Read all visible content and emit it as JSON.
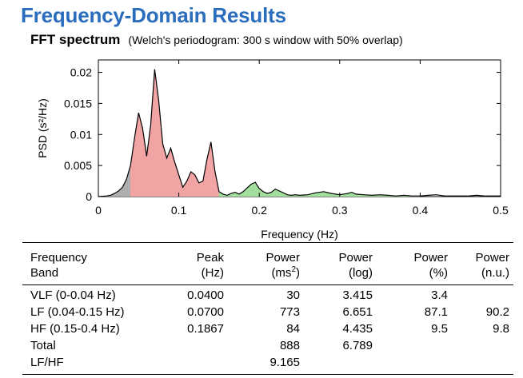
{
  "title": "Frequency-Domain Results",
  "subtitle": "FFT spectrum",
  "subtitle_note": "(Welch's periodogram: 300 s window with 50% overlap)",
  "chart_data": {
    "type": "area",
    "xlabel": "Frequency (Hz)",
    "ylabel": "PSD (s²/Hz)",
    "xlim": [
      0,
      0.5
    ],
    "ylim": [
      0,
      0.022
    ],
    "xticks": [
      "0",
      "0.1",
      "0.2",
      "0.3",
      "0.4",
      "0.5"
    ],
    "yticks": [
      "0",
      "0.005",
      "0.01",
      "0.015",
      "0.02"
    ],
    "bands": [
      {
        "name": "VLF",
        "range": [
          0,
          0.04
        ],
        "color": "#b3b3b3"
      },
      {
        "name": "LF",
        "range": [
          0.04,
          0.15
        ],
        "color": "#f4a9a9"
      },
      {
        "name": "HF",
        "range": [
          0.15,
          0.4
        ],
        "color": "#a8e2a2"
      }
    ],
    "x": [
      0,
      0.005,
      0.01,
      0.015,
      0.02,
      0.025,
      0.03,
      0.035,
      0.04,
      0.045,
      0.05,
      0.055,
      0.06,
      0.065,
      0.07,
      0.075,
      0.08,
      0.085,
      0.09,
      0.095,
      0.1,
      0.105,
      0.11,
      0.115,
      0.12,
      0.125,
      0.13,
      0.135,
      0.14,
      0.145,
      0.15,
      0.155,
      0.16,
      0.165,
      0.17,
      0.175,
      0.18,
      0.185,
      0.19,
      0.195,
      0.2,
      0.205,
      0.21,
      0.215,
      0.22,
      0.225,
      0.23,
      0.235,
      0.24,
      0.245,
      0.25,
      0.26,
      0.27,
      0.28,
      0.29,
      0.3,
      0.31,
      0.315,
      0.32,
      0.33,
      0.34,
      0.35,
      0.36,
      0.37,
      0.38,
      0.39,
      0.4,
      0.41,
      0.42,
      0.43,
      0.44,
      0.45,
      0.46,
      0.47,
      0.48,
      0.49,
      0.5
    ],
    "y": [
      0,
      5e-05,
      0.0001,
      0.0002,
      0.0005,
      0.0009,
      0.0015,
      0.0028,
      0.005,
      0.0095,
      0.0135,
      0.011,
      0.0065,
      0.0115,
      0.0205,
      0.0155,
      0.0085,
      0.0062,
      0.0078,
      0.0055,
      0.0035,
      0.0015,
      0.0025,
      0.004,
      0.0035,
      0.0022,
      0.0025,
      0.006,
      0.0088,
      0.004,
      0.0008,
      0.0004,
      0.0002,
      0.0005,
      0.0007,
      0.0004,
      0.0008,
      0.0014,
      0.002,
      0.0023,
      0.0013,
      0.0008,
      0.0005,
      0.0007,
      0.0012,
      0.0009,
      0.0006,
      0.0003,
      0.0002,
      0.0003,
      0.0002,
      0.0003,
      0.0006,
      0.0008,
      0.0005,
      0.0003,
      0.0005,
      0.0007,
      0.0004,
      0.0003,
      0.0002,
      0.0003,
      0.0002,
      0.0001,
      0.0002,
      0.0001,
      0.0001,
      0.0002,
      0.0003,
      0.0001,
      0.0001,
      0.0001,
      0.0001,
      0.0002,
      0.0001,
      0.0001,
      0.0001
    ]
  },
  "table": {
    "headers": {
      "band": [
        "Frequency",
        "Band"
      ],
      "peak": [
        "Peak",
        "(Hz)"
      ],
      "power_ms2": [
        "Power",
        "(ms",
        ")"
      ],
      "power_log": [
        "Power",
        "(log)"
      ],
      "power_pct": [
        "Power",
        "(%)"
      ],
      "power_nu": [
        "Power",
        "(n.u.)"
      ],
      "superscript": "2"
    },
    "rows": [
      {
        "band": "VLF (0-0.04 Hz)",
        "peak": "0.0400",
        "power_ms2": "30",
        "power_log": "3.415",
        "power_pct": "3.4",
        "power_nu": ""
      },
      {
        "band": "LF (0.04-0.15 Hz)",
        "peak": "0.0700",
        "power_ms2": "773",
        "power_log": "6.651",
        "power_pct": "87.1",
        "power_nu": "90.2"
      },
      {
        "band": "HF (0.15-0.4 Hz)",
        "peak": "0.1867",
        "power_ms2": "84",
        "power_log": "4.435",
        "power_pct": "9.5",
        "power_nu": "9.8"
      },
      {
        "band": "Total",
        "peak": "",
        "power_ms2": "888",
        "power_log": "6.789",
        "power_pct": "",
        "power_nu": ""
      },
      {
        "band": "LF/HF",
        "peak": "",
        "power_ms2": "9.165",
        "power_log": "",
        "power_pct": "",
        "power_nu": ""
      }
    ]
  }
}
